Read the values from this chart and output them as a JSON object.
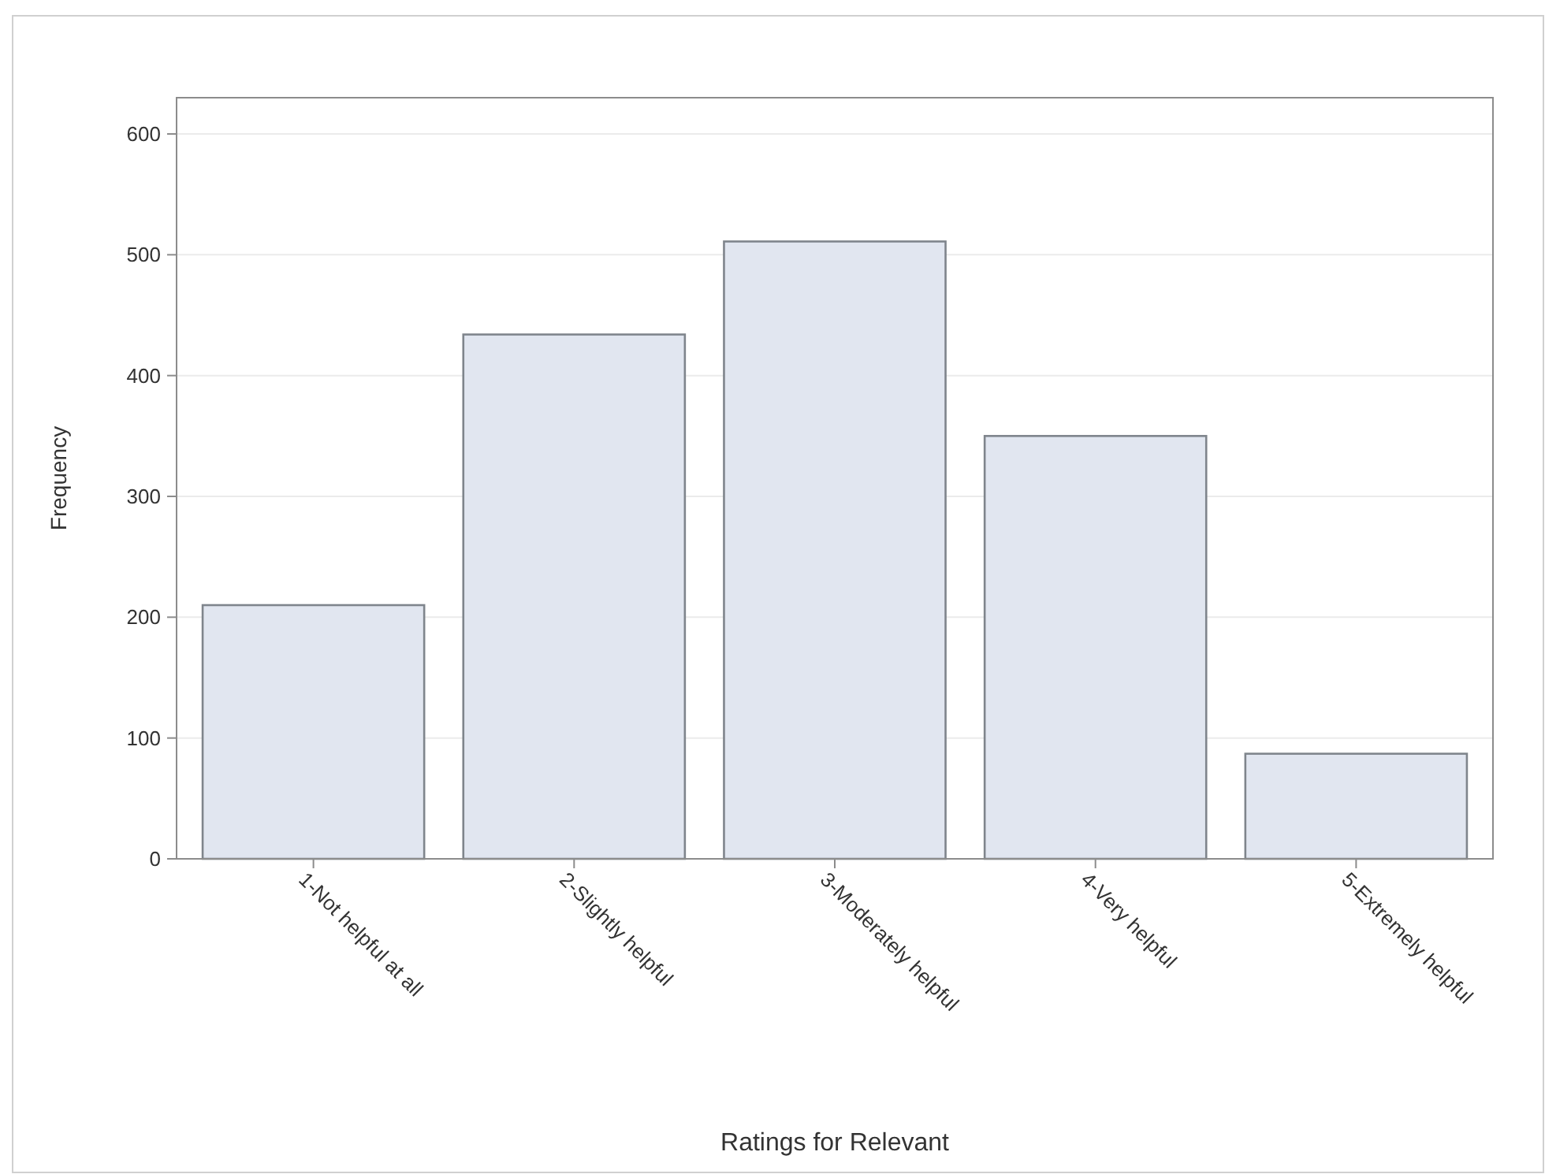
{
  "chart_data": {
    "type": "bar",
    "xlabel": "Ratings for Relevant",
    "ylabel": "Frequency",
    "categories": [
      "1-Not helpful at all",
      "2-Slightly helpful",
      "3-Moderately helpful",
      "4-Very helpful",
      "5-Extremely helpful"
    ],
    "values": [
      210,
      434,
      511,
      350,
      87
    ],
    "color": "#e1e6f0",
    "ylim": [
      0,
      630
    ],
    "yticks": [
      0,
      100,
      200,
      300,
      400,
      500,
      600
    ],
    "grid": "y"
  }
}
